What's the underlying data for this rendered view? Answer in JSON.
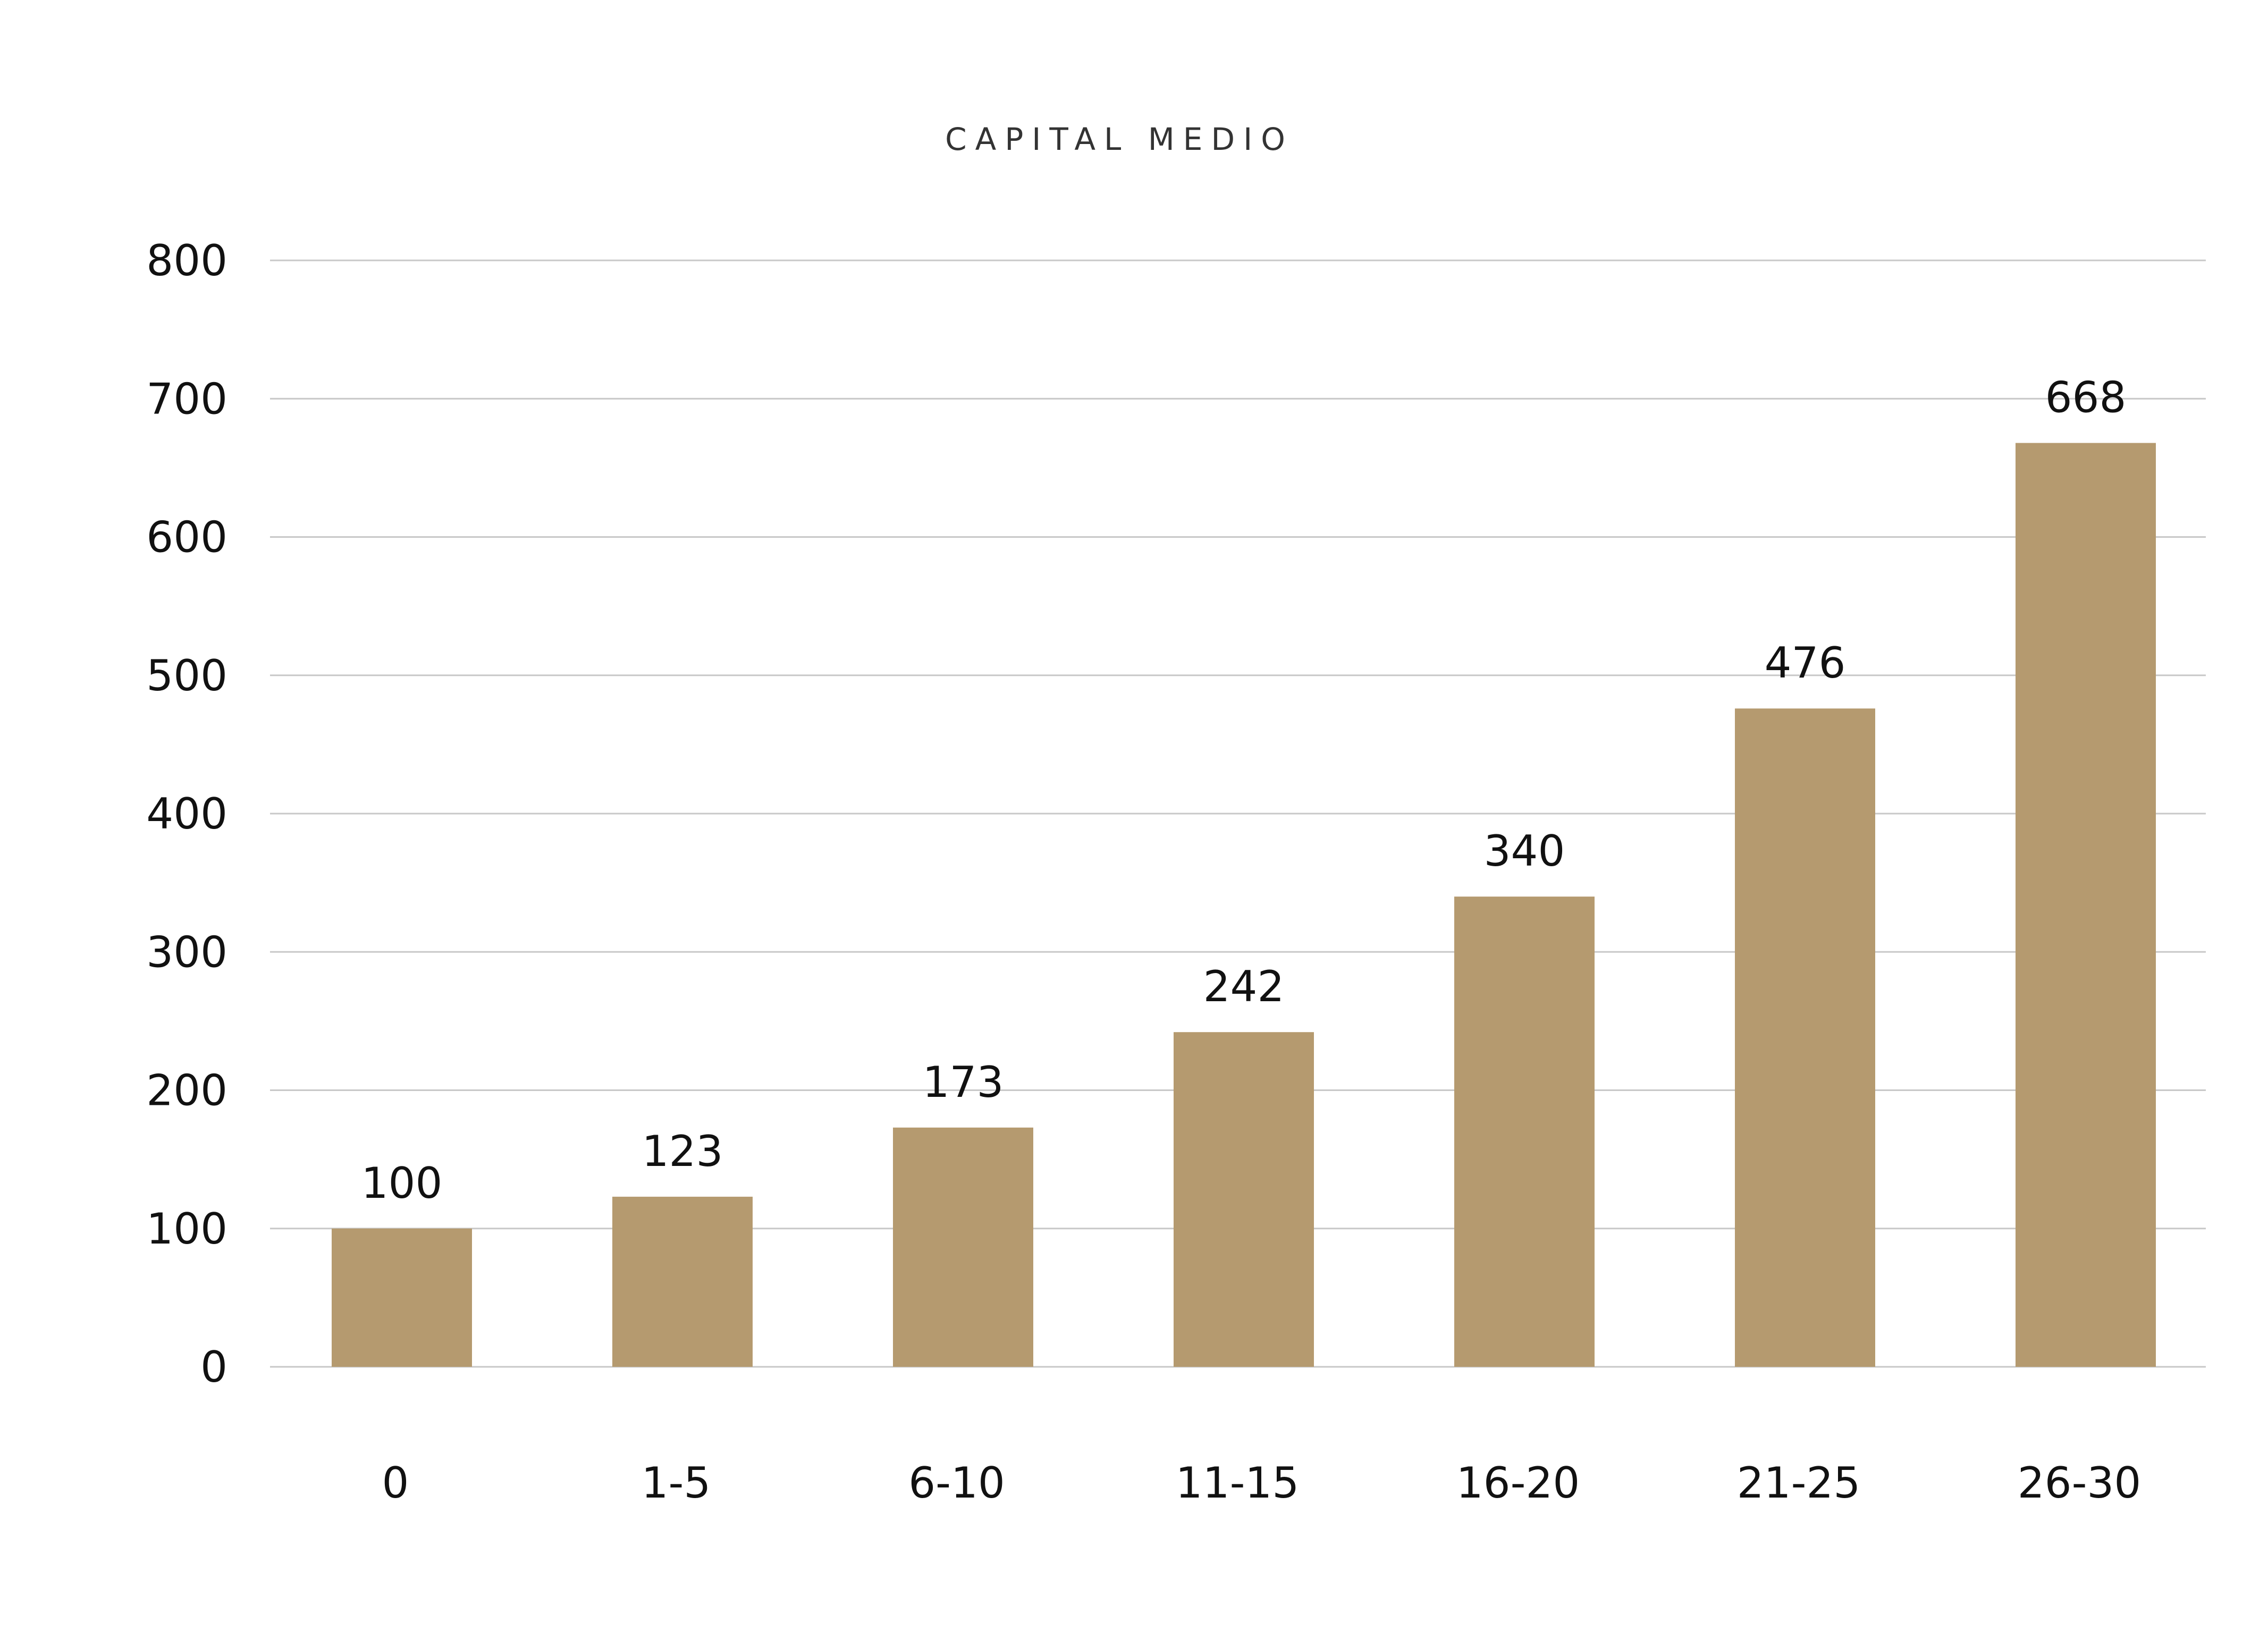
{
  "chart_data": {
    "type": "bar",
    "title": "CAPITAL MEDIO",
    "xlabel": "",
    "ylabel": "",
    "categories": [
      "0",
      "1-5",
      "6-10",
      "11-15",
      "16-20",
      "21-25",
      "26-30"
    ],
    "values": [
      100,
      123,
      173,
      242,
      340,
      476,
      668
    ],
    "data_labels": [
      "100",
      "123",
      "173",
      "242",
      "340",
      "476",
      "668"
    ],
    "ylim": [
      0,
      800
    ],
    "yticks": [
      0,
      100,
      200,
      300,
      400,
      500,
      600,
      700,
      800
    ],
    "ytick_labels": [
      "0",
      "100",
      "200",
      "300",
      "400",
      "500",
      "600",
      "700",
      "800"
    ],
    "grid": true,
    "legend": "none",
    "bar_color": "#b59a6f",
    "grid_color": "#c8c8c8"
  }
}
